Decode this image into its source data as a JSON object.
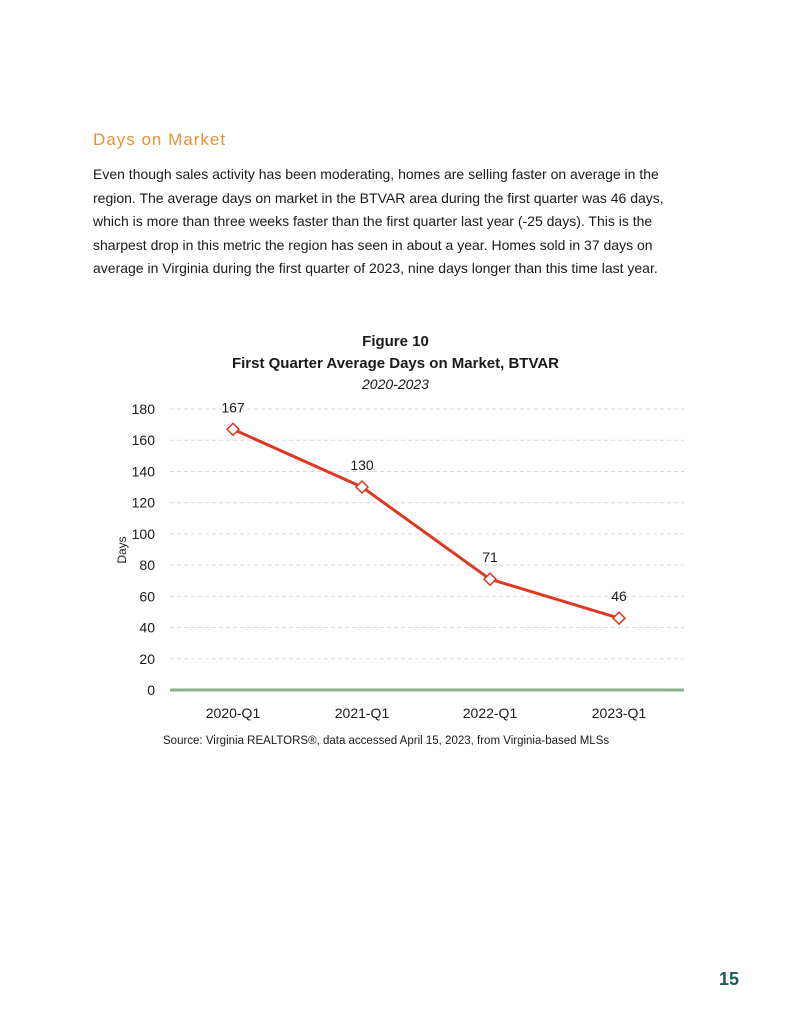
{
  "section": {
    "heading": "Days on Market",
    "body": "Even though sales activity has been moderating, homes are selling faster on average in the region. The average days on market in the BTVAR area during the first quarter was 46 days, which is more than three weeks faster than the first quarter last year (-25 days). This is the sharpest drop in this metric the region has seen in about a year. Homes sold in 37 days on average in Virginia during the first quarter of 2023, nine days longer than this time last year."
  },
  "figure": {
    "label": "Figure 10",
    "title": "First Quarter Average Days on Market, BTVAR",
    "subtitle": "2020-2023",
    "source": "Source: Virginia REALTORS®, data accessed April 15, 2023, from Virginia-based MLSs"
  },
  "chart_data": {
    "type": "line",
    "title": "First Quarter Average Days on Market, BTVAR",
    "subtitle": "2020-2023",
    "xlabel": "",
    "ylabel": "Days",
    "categories": [
      "2020-Q1",
      "2021-Q1",
      "2022-Q1",
      "2023-Q1"
    ],
    "values": [
      167,
      130,
      71,
      46
    ],
    "data_labels": [
      "167",
      "130",
      "71",
      "46"
    ],
    "ylim": [
      0,
      180
    ],
    "yticks": [
      0,
      20,
      40,
      60,
      80,
      100,
      120,
      140,
      160,
      180
    ],
    "grid": true,
    "line_color": "#d93a24",
    "marker": "diamond-open",
    "axis_color": "#8db08e",
    "grid_color": "#d9d9d9"
  },
  "page": {
    "number": "15"
  }
}
